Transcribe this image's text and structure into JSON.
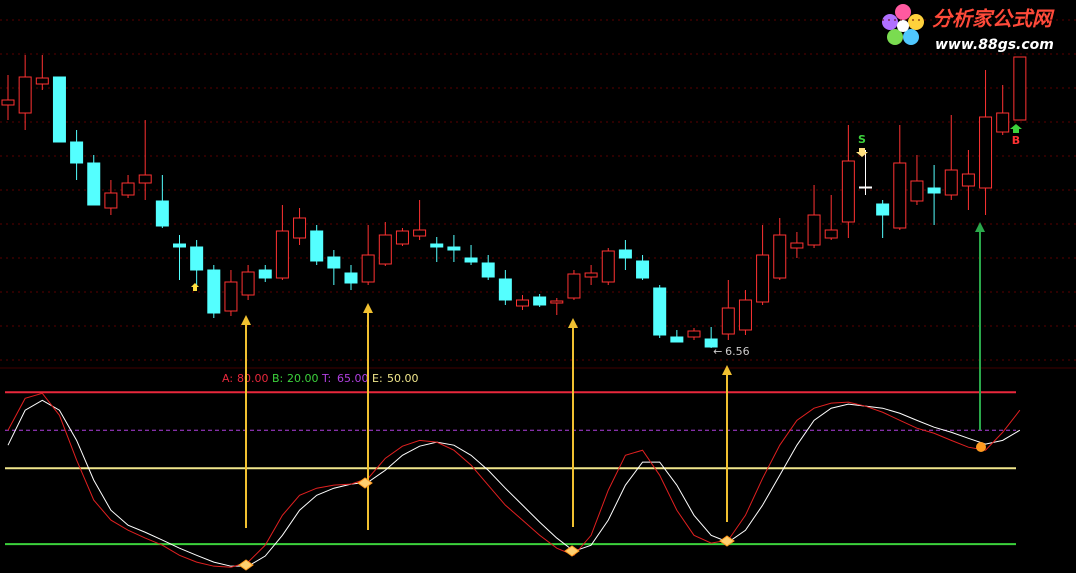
{
  "chart_data": [
    {
      "type": "candlestick",
      "ylim": [
        6.39,
        9.99
      ],
      "up_color": "#ff3232",
      "down_color": "#54ffff",
      "open": [
        8.99,
        8.91,
        9.2,
        9.27,
        8.62,
        8.41,
        7.96,
        8.09,
        8.21,
        8.03,
        7.6,
        7.57,
        7.34,
        6.93,
        7.09,
        7.34,
        7.26,
        7.66,
        7.73,
        7.47,
        7.31,
        7.22,
        7.4,
        7.6,
        7.68,
        7.6,
        7.57,
        7.46,
        7.41,
        7.25,
        6.98,
        7.07,
        7.01,
        7.06,
        7.27,
        7.22,
        7.54,
        7.43,
        7.16,
        6.67,
        6.67,
        6.65,
        6.7,
        6.74,
        7.02,
        7.26,
        7.56,
        7.59,
        7.66,
        7.82,
        8.16,
        8.0,
        7.76,
        8.03,
        8.16,
        8.09,
        8.18,
        8.16,
        8.72,
        8.84
      ],
      "high": [
        9.29,
        9.49,
        9.49,
        9.27,
        8.74,
        8.49,
        8.24,
        8.29,
        8.84,
        8.29,
        7.69,
        7.64,
        7.39,
        7.34,
        7.39,
        7.39,
        7.99,
        7.96,
        7.79,
        7.54,
        7.39,
        7.79,
        7.82,
        7.76,
        8.04,
        7.67,
        7.69,
        7.59,
        7.49,
        7.34,
        7.09,
        7.1,
        7.06,
        7.34,
        7.39,
        7.56,
        7.64,
        7.49,
        7.19,
        6.74,
        6.76,
        6.77,
        7.24,
        7.14,
        7.79,
        7.86,
        7.72,
        8.19,
        8.09,
        8.79,
        8.54,
        8.04,
        8.79,
        8.49,
        8.39,
        8.89,
        8.54,
        9.34,
        9.19,
        9.47
      ],
      "low": [
        8.84,
        8.74,
        9.14,
        8.62,
        8.24,
        7.99,
        7.89,
        8.06,
        8.04,
        7.76,
        7.24,
        7.19,
        6.86,
        6.88,
        7.04,
        7.22,
        7.24,
        7.59,
        7.39,
        7.19,
        7.14,
        7.19,
        7.38,
        7.58,
        7.64,
        7.42,
        7.42,
        7.39,
        7.24,
        6.99,
        6.94,
        6.97,
        6.89,
        7.04,
        7.19,
        7.19,
        7.34,
        7.24,
        6.66,
        6.64,
        6.64,
        6.56,
        6.64,
        6.69,
        6.99,
        7.24,
        7.46,
        7.56,
        7.64,
        7.66,
        8.09,
        7.66,
        7.74,
        7.99,
        7.79,
        8.04,
        7.94,
        7.89,
        8.69,
        8.84
      ],
      "close": [
        9.04,
        9.27,
        9.26,
        8.62,
        8.41,
        7.99,
        8.11,
        8.21,
        8.29,
        7.78,
        7.57,
        7.34,
        6.91,
        7.22,
        7.32,
        7.26,
        7.73,
        7.86,
        7.43,
        7.36,
        7.21,
        7.49,
        7.69,
        7.73,
        7.74,
        7.57,
        7.54,
        7.42,
        7.27,
        7.04,
        7.04,
        6.99,
        7.03,
        7.3,
        7.31,
        7.53,
        7.46,
        7.26,
        6.69,
        6.62,
        6.73,
        6.57,
        6.96,
        7.04,
        7.49,
        7.69,
        7.61,
        7.89,
        7.74,
        8.43,
        8.17,
        7.89,
        8.41,
        8.23,
        8.11,
        8.34,
        8.3,
        8.87,
        8.91,
        9.47
      ],
      "sell_label": "S",
      "buy_label": "B"
    },
    {
      "type": "line",
      "ylim": [
        9,
        88
      ],
      "series": [
        {
          "color": "#ffffff",
          "values": [
            59.1,
            72.9,
            76.8,
            72.9,
            61.0,
            45.3,
            33.4,
            27.5,
            24.7,
            21.6,
            18.4,
            15.6,
            12.9,
            11.3,
            11.3,
            15.3,
            23.5,
            33.4,
            39.3,
            42.1,
            43.7,
            44.5,
            49.2,
            55.1,
            58.7,
            60.3,
            59.1,
            55.1,
            49.2,
            42.1,
            35.4,
            28.7,
            22.4,
            17.2,
            19.6,
            29.5,
            43.3,
            52.4,
            52.4,
            43.3,
            31.4,
            23.5,
            20.8,
            25.5,
            35.4,
            47.2,
            59.1,
            68.9,
            73.7,
            75.3,
            74.5,
            73.7,
            71.7,
            68.9,
            66.2,
            64.2,
            61.8,
            59.5,
            61.0,
            65.0
          ]
        },
        {
          "color": "#e02020",
          "values": [
            65.0,
            77.6,
            79.6,
            70.9,
            53.2,
            37.4,
            29.5,
            25.5,
            22.4,
            19.6,
            15.6,
            12.9,
            11.3,
            10.9,
            12.9,
            19.6,
            31.4,
            39.3,
            42.1,
            43.3,
            43.7,
            46.0,
            53.9,
            58.7,
            61.0,
            60.3,
            57.1,
            51.2,
            43.3,
            35.4,
            29.5,
            23.5,
            18.4,
            15.6,
            23.5,
            41.3,
            55.1,
            57.1,
            47.2,
            33.4,
            23.5,
            20.4,
            21.6,
            31.4,
            46.0,
            59.1,
            68.9,
            73.7,
            75.7,
            76.1,
            74.5,
            72.1,
            68.9,
            65.8,
            63.8,
            61.0,
            58.3,
            57.1,
            64.2,
            72.9
          ]
        }
      ],
      "levels": [
        {
          "name": "A:",
          "value": 80,
          "value_label": "80.00",
          "color": "#e8283c",
          "dashed": false
        },
        {
          "name": "B:",
          "value": 20,
          "value_label": "20.00",
          "color": "#3cd23c",
          "dashed": false
        },
        {
          "name": "T:",
          "value": 65,
          "value_label": "65.00",
          "color": "#b040e0",
          "dashed": true
        },
        {
          "name": "E:",
          "value": 50,
          "value_label": "50.00",
          "color": "#f0e68c",
          "dashed": false
        }
      ]
    }
  ],
  "logo": {
    "title": "分析家公式网",
    "url": "www.88gs.com"
  }
}
